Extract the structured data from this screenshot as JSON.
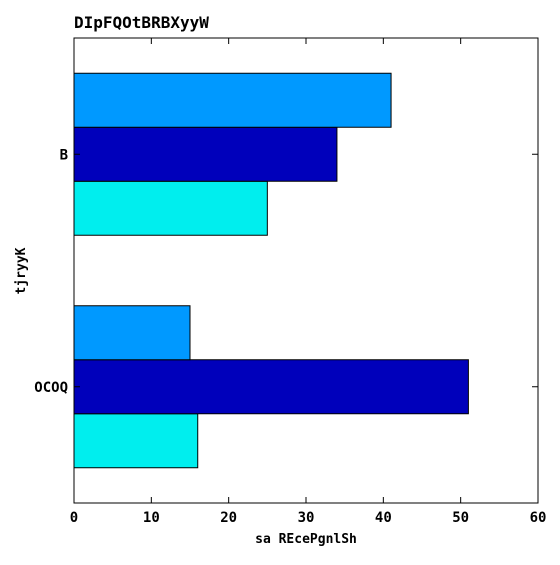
{
  "chart_data": {
    "type": "bar",
    "orientation": "horizontal",
    "title": "DIpFQOtBRBXyyW",
    "xlabel": "sa REcePgnlSh",
    "ylabel": "tjryyK",
    "categories": [
      "OCOQ",
      "B"
    ],
    "xlim": [
      0,
      60
    ],
    "xticks": [
      0,
      10,
      20,
      30,
      40,
      50,
      60
    ],
    "grid": false,
    "series": [
      {
        "color": "#00eeee",
        "values": [
          16,
          25
        ]
      },
      {
        "color": "#0000bb",
        "values": [
          51,
          34
        ]
      },
      {
        "color": "#0099ff",
        "values": [
          15,
          41
        ]
      }
    ]
  }
}
